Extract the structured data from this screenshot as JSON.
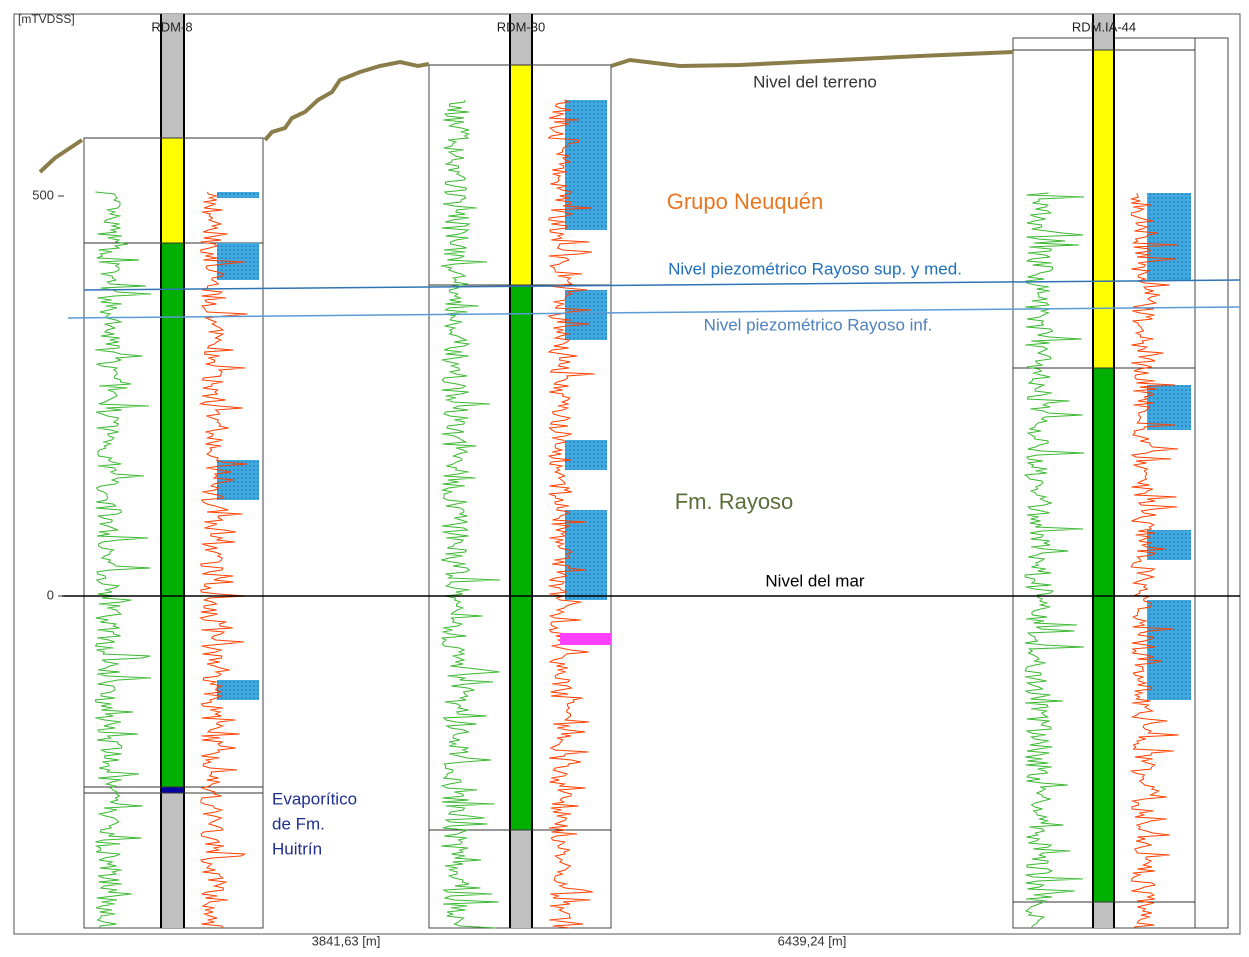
{
  "axis": {
    "unit": "[mTVDSS]",
    "ticks": [
      "500",
      "0"
    ]
  },
  "wells": [
    {
      "name": "RDM-8"
    },
    {
      "name": "RDM-30"
    },
    {
      "name": "RDM.IA-44"
    }
  ],
  "labels": {
    "terrain": "Nivel del terreno",
    "group": "Grupo Neuquén",
    "piezo_upper": "Nivel piezométrico Rayoso sup. y med.",
    "piezo_lower": "Nivel piezométrico Rayoso inf.",
    "formation": "Fm. Rayoso",
    "sea_level": "Nivel del mar",
    "evaporite": [
      "Evaporítico",
      "de Fm.",
      "Huitrín"
    ]
  },
  "distances": [
    "3841,63 [m]",
    "6439,24 [m]"
  ]
}
